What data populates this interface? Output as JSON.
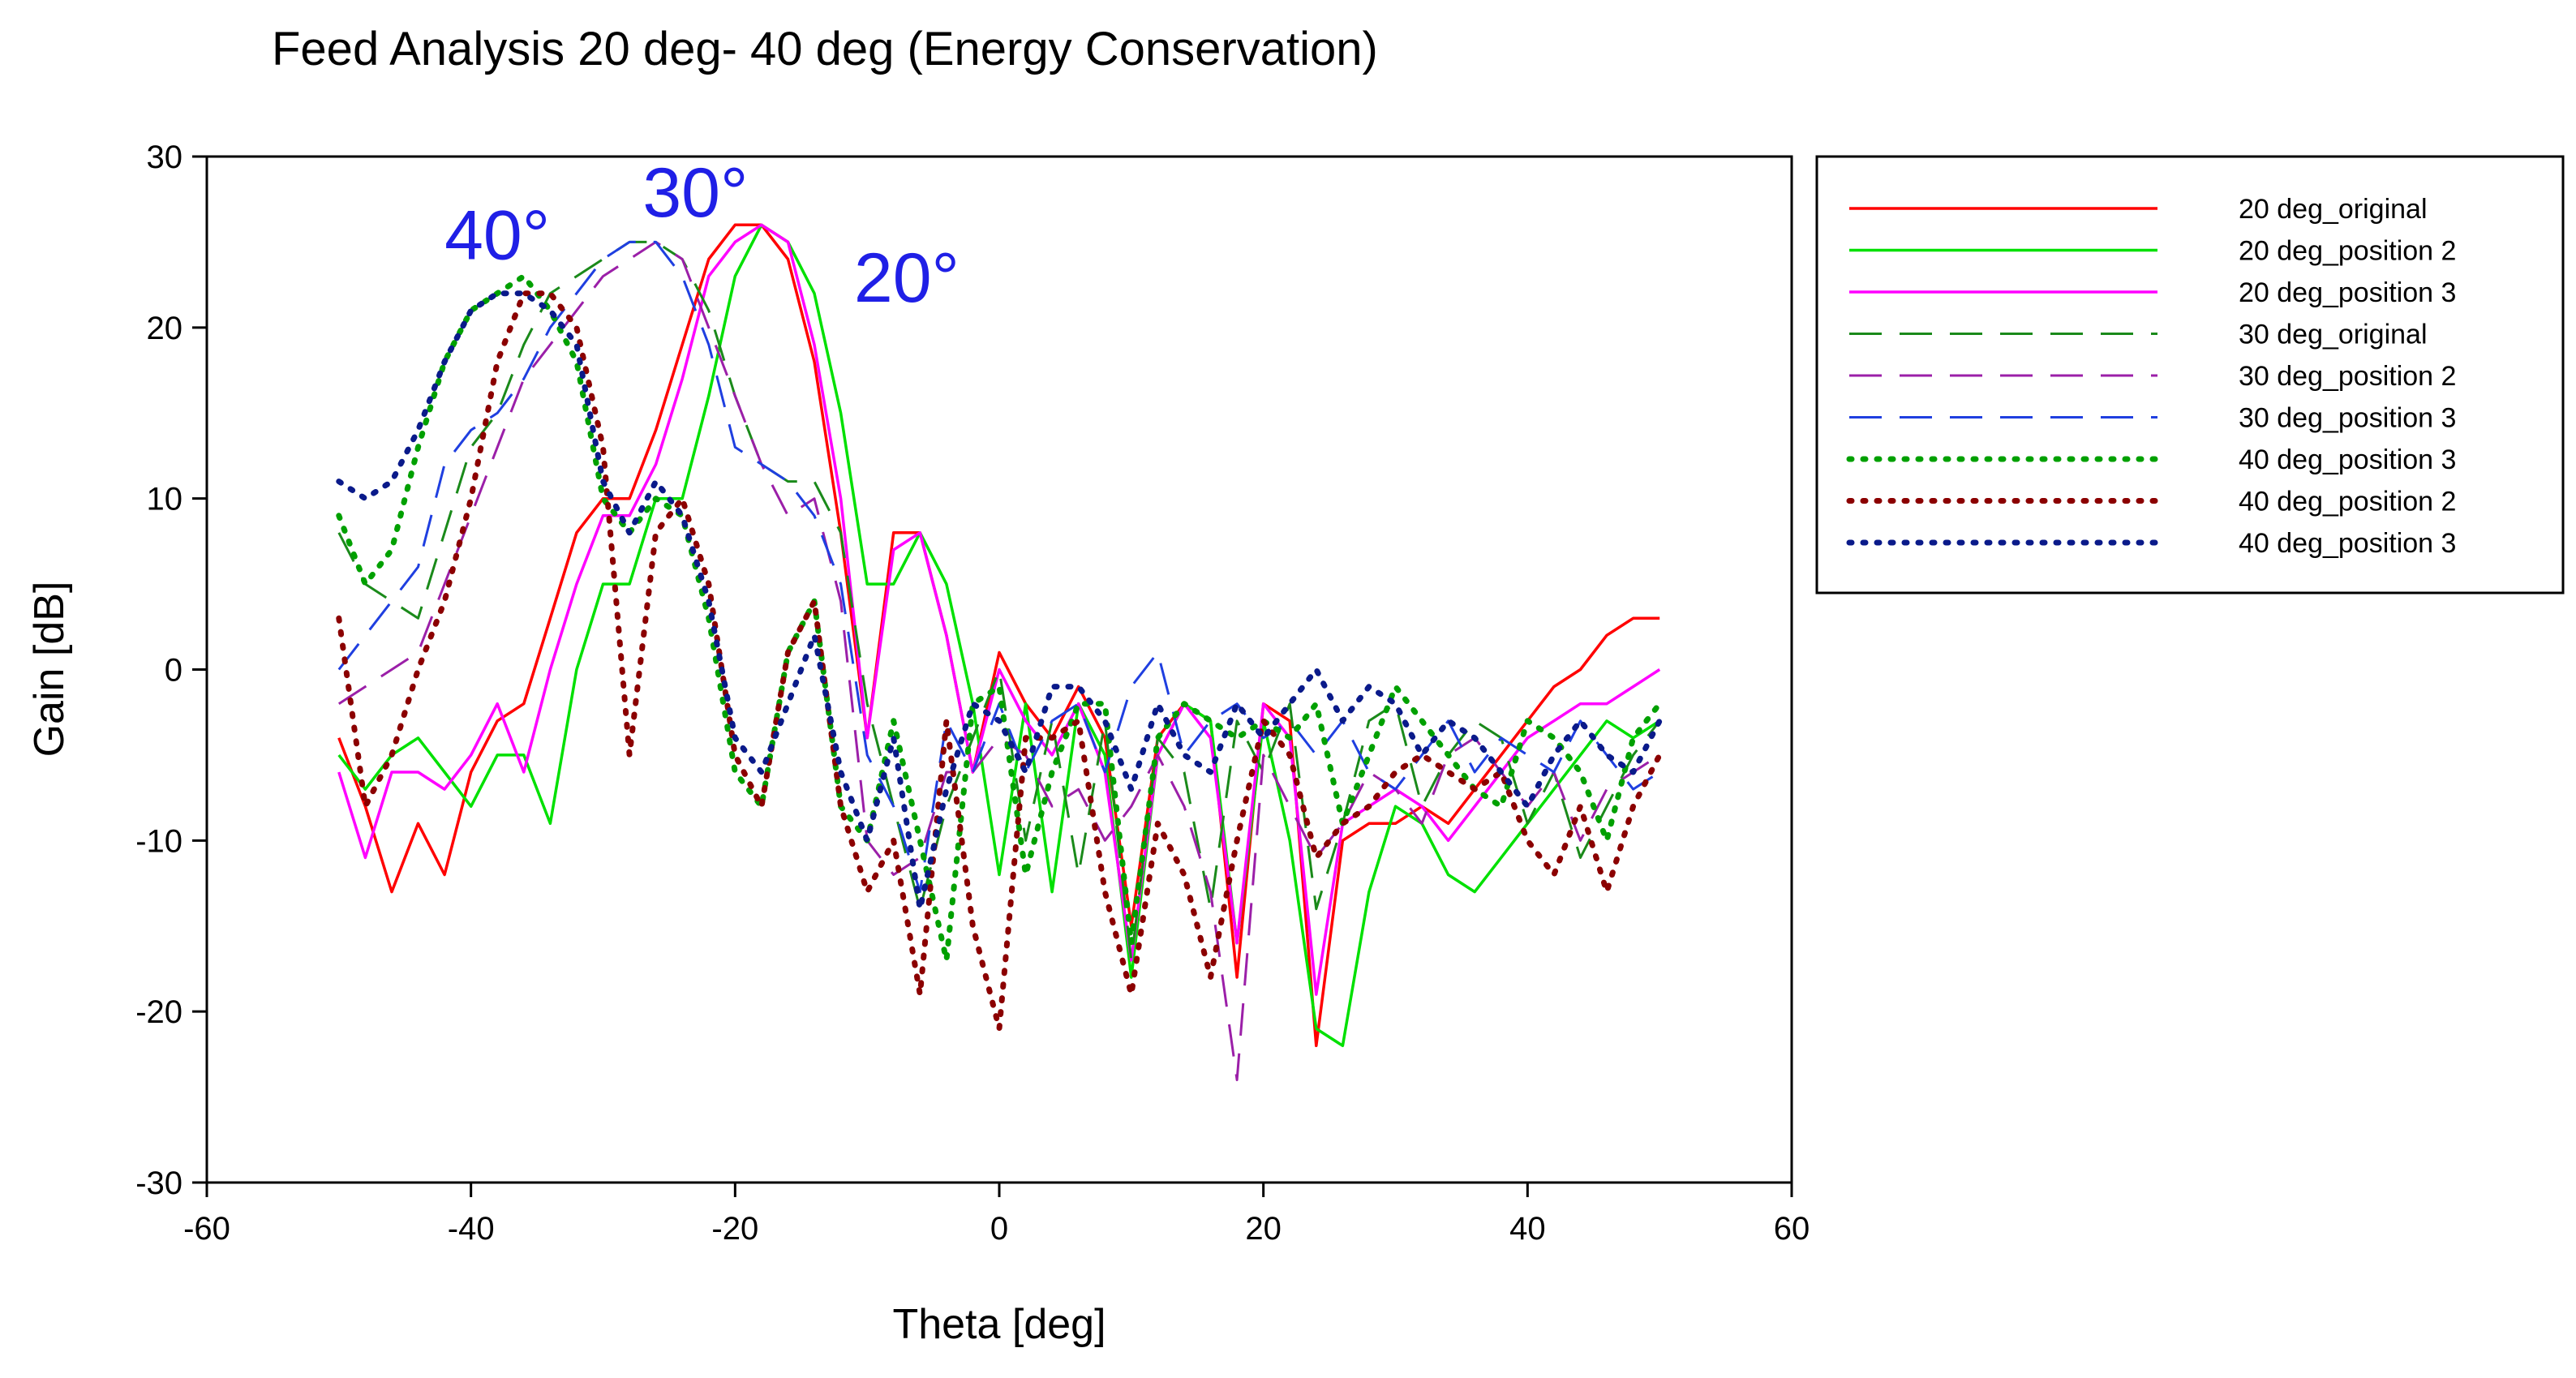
{
  "chart_data": {
    "type": "line",
    "title": "Feed Analysis 20 deg- 40 deg (Energy Conservation)",
    "xlabel": "Theta [deg]",
    "ylabel": "Gain [dB]",
    "xlim": [
      -60,
      60
    ],
    "ylim": [
      -30,
      30
    ],
    "xticks": [
      -60,
      -40,
      -20,
      0,
      20,
      40,
      60
    ],
    "yticks": [
      -30,
      -20,
      -10,
      0,
      10,
      20,
      30
    ],
    "grid": false,
    "legend_position": "right-top",
    "annotations": [
      {
        "text": "40°",
        "x": -42,
        "y": 24
      },
      {
        "text": "30°",
        "x": -27,
        "y": 26.5
      },
      {
        "text": "20°",
        "x": -11,
        "y": 21.5
      }
    ],
    "series": [
      {
        "name": "20 deg_original",
        "color": "#ff0000",
        "style": "solid",
        "x": [
          -50,
          -48,
          -46,
          -44,
          -42,
          -40,
          -38,
          -36,
          -34,
          -32,
          -30,
          -28,
          -26,
          -24,
          -22,
          -20,
          -18,
          -16,
          -14,
          -12,
          -10,
          -8,
          -6,
          -4,
          -2,
          0,
          2,
          4,
          6,
          8,
          10,
          12,
          14,
          16,
          18,
          20,
          22,
          24,
          26,
          28,
          30,
          32,
          34,
          36,
          38,
          40,
          42,
          44,
          46,
          48,
          50
        ],
        "y": [
          -4,
          -8,
          -13,
          -9,
          -12,
          -6,
          -3,
          -2,
          3,
          8,
          10,
          10,
          14,
          19,
          24,
          26,
          26,
          24,
          18,
          8,
          -4,
          8,
          8,
          2,
          -6,
          1,
          -2,
          -4,
          -1,
          -4,
          -15,
          -4,
          -2,
          -3,
          -18,
          -2,
          -3,
          -22,
          -10,
          -9,
          -9,
          -8,
          -9,
          -7,
          -5,
          -3,
          -1,
          0,
          2,
          3,
          3
        ]
      },
      {
        "name": "20 deg_position 2",
        "color": "#00e000",
        "style": "solid",
        "x": [
          -50,
          -48,
          -46,
          -44,
          -42,
          -40,
          -38,
          -36,
          -34,
          -32,
          -30,
          -28,
          -26,
          -24,
          -22,
          -20,
          -18,
          -16,
          -14,
          -12,
          -10,
          -8,
          -6,
          -4,
          -2,
          0,
          2,
          4,
          6,
          8,
          10,
          12,
          14,
          16,
          18,
          20,
          22,
          24,
          26,
          28,
          30,
          32,
          34,
          36,
          38,
          40,
          42,
          44,
          46,
          48,
          50
        ],
        "y": [
          -5,
          -7,
          -5,
          -4,
          -6,
          -8,
          -5,
          -5,
          -9,
          0,
          5,
          5,
          10,
          10,
          16,
          23,
          26,
          25,
          22,
          15,
          5,
          5,
          8,
          5,
          -2,
          -12,
          -2,
          -13,
          -2,
          -5,
          -18,
          -5,
          -2,
          -3,
          -16,
          -3,
          -10,
          -21,
          -22,
          -13,
          -8,
          -9,
          -12,
          -13,
          -11,
          -9,
          -7,
          -5,
          -3,
          -4,
          -3
        ]
      },
      {
        "name": "20 deg_position 3",
        "color": "#ff00ff",
        "style": "solid",
        "x": [
          -50,
          -48,
          -46,
          -44,
          -42,
          -40,
          -38,
          -36,
          -34,
          -32,
          -30,
          -28,
          -26,
          -24,
          -22,
          -20,
          -18,
          -16,
          -14,
          -12,
          -10,
          -8,
          -6,
          -4,
          -2,
          0,
          2,
          4,
          6,
          8,
          10,
          12,
          14,
          16,
          18,
          20,
          22,
          24,
          26,
          28,
          30,
          32,
          34,
          36,
          38,
          40,
          42,
          44,
          46,
          48,
          50
        ],
        "y": [
          -6,
          -11,
          -6,
          -6,
          -7,
          -5,
          -2,
          -6,
          0,
          5,
          9,
          9,
          12,
          17,
          23,
          25,
          26,
          25,
          19,
          10,
          -4,
          7,
          8,
          2,
          -6,
          0,
          -3,
          -5,
          -2,
          -6,
          -17,
          -5,
          -2,
          -4,
          -16,
          -2,
          -4,
          -19,
          -9,
          -8,
          -7,
          -8,
          -10,
          -8,
          -6,
          -4,
          -3,
          -2,
          -2,
          -1,
          0
        ]
      },
      {
        "name": "30 deg_original",
        "color": "#1a8a1a",
        "style": "dashed",
        "x": [
          -50,
          -48,
          -46,
          -44,
          -42,
          -40,
          -38,
          -36,
          -34,
          -32,
          -30,
          -28,
          -26,
          -24,
          -22,
          -20,
          -18,
          -16,
          -14,
          -12,
          -10,
          -8,
          -6,
          -4,
          -2,
          0,
          2,
          4,
          6,
          8,
          10,
          12,
          14,
          16,
          18,
          20,
          22,
          24,
          26,
          28,
          30,
          32,
          34,
          36,
          38,
          40,
          42,
          44,
          46,
          48,
          50
        ],
        "y": [
          8,
          5,
          4,
          3,
          8,
          13,
          15,
          19,
          22,
          23,
          24,
          25,
          25,
          24,
          21,
          16,
          12,
          11,
          11,
          8,
          -2,
          -8,
          -14,
          -8,
          -4,
          0,
          -10,
          -3,
          -12,
          -3,
          -17,
          -4,
          -6,
          -14,
          -3,
          -6,
          -2,
          -14,
          -9,
          -3,
          -2,
          -8,
          -5,
          -3,
          -4,
          -9,
          -6,
          -11,
          -8,
          -5,
          -3
        ]
      },
      {
        "name": "30 deg_position 2",
        "color": "#9b1fa8",
        "style": "dashed",
        "x": [
          -50,
          -48,
          -46,
          -44,
          -42,
          -40,
          -38,
          -36,
          -34,
          -32,
          -30,
          -28,
          -26,
          -24,
          -22,
          -20,
          -18,
          -16,
          -14,
          -12,
          -10,
          -8,
          -6,
          -4,
          -2,
          0,
          2,
          4,
          6,
          8,
          10,
          12,
          14,
          16,
          18,
          20,
          22,
          24,
          26,
          28,
          30,
          32,
          34,
          36,
          38,
          40,
          42,
          44,
          46,
          48,
          50
        ],
        "y": [
          -2,
          -1,
          0,
          1,
          5,
          9,
          13,
          17,
          19,
          21,
          23,
          24,
          25,
          24,
          20,
          16,
          12,
          9,
          10,
          4,
          -10,
          -12,
          -11,
          -6,
          -6,
          -4,
          -5,
          -8,
          -7,
          -10,
          -8,
          -5,
          -8,
          -13,
          -24,
          -5,
          -8,
          -11,
          -9,
          -6,
          -7,
          -9,
          -5,
          -4,
          -6,
          -8,
          -6,
          -10,
          -7,
          -6,
          -5
        ]
      },
      {
        "name": "30 deg_position 3",
        "color": "#1f3fe0",
        "style": "dashed",
        "x": [
          -50,
          -48,
          -46,
          -44,
          -42,
          -40,
          -38,
          -36,
          -34,
          -32,
          -30,
          -28,
          -26,
          -24,
          -22,
          -20,
          -18,
          -16,
          -14,
          -12,
          -10,
          -8,
          -6,
          -4,
          -2,
          0,
          2,
          4,
          6,
          8,
          10,
          12,
          14,
          16,
          18,
          20,
          22,
          24,
          26,
          28,
          30,
          32,
          34,
          36,
          38,
          40,
          42,
          44,
          46,
          48,
          50
        ],
        "y": [
          0,
          2,
          4,
          6,
          12,
          14,
          15,
          17,
          20,
          22,
          24,
          25,
          25,
          23,
          19,
          13,
          12,
          11,
          9,
          5,
          -5,
          -8,
          -13,
          -3,
          -6,
          -2,
          -6,
          -3,
          -2,
          -6,
          -1,
          1,
          -5,
          -3,
          -2,
          -4,
          -3,
          -5,
          -3,
          -6,
          -7,
          -5,
          -3,
          -6,
          -4,
          -5,
          -6,
          -3,
          -5,
          -7,
          -6
        ]
      },
      {
        "name": "40 deg_position 3",
        "color": "#00a000",
        "style": "dotted",
        "x": [
          -50,
          -48,
          -46,
          -44,
          -42,
          -40,
          -38,
          -36,
          -34,
          -32,
          -30,
          -28,
          -26,
          -24,
          -22,
          -20,
          -18,
          -16,
          -14,
          -12,
          -10,
          -8,
          -6,
          -4,
          -2,
          0,
          2,
          4,
          6,
          8,
          10,
          12,
          14,
          16,
          18,
          20,
          22,
          24,
          26,
          28,
          30,
          32,
          34,
          36,
          38,
          40,
          42,
          44,
          46,
          48,
          50
        ],
        "y": [
          9,
          5,
          7,
          13,
          18,
          21,
          22,
          23,
          21,
          18,
          10,
          8,
          10,
          9,
          3,
          -6,
          -8,
          1,
          4,
          -8,
          -10,
          -3,
          -10,
          -17,
          -2,
          -1,
          -12,
          -6,
          -2,
          -2,
          -16,
          -4,
          -2,
          -3,
          -4,
          -3,
          -4,
          -2,
          -9,
          -5,
          -1,
          -3,
          -5,
          -7,
          -8,
          -3,
          -4,
          -6,
          -10,
          -4,
          -2
        ]
      },
      {
        "name": "40 deg_position 2",
        "color": "#8b0000",
        "style": "dotted",
        "x": [
          -50,
          -48,
          -46,
          -44,
          -42,
          -40,
          -38,
          -36,
          -34,
          -32,
          -30,
          -28,
          -26,
          -24,
          -22,
          -20,
          -18,
          -16,
          -14,
          -12,
          -10,
          -8,
          -6,
          -4,
          -2,
          0,
          2,
          4,
          6,
          8,
          10,
          12,
          14,
          16,
          18,
          20,
          22,
          24,
          26,
          28,
          30,
          32,
          34,
          36,
          38,
          40,
          42,
          44,
          46,
          48,
          50
        ],
        "y": [
          3,
          -8,
          -5,
          0,
          4,
          10,
          18,
          22,
          22,
          20,
          13,
          -5,
          8,
          10,
          5,
          -5,
          -8,
          1,
          4,
          -8,
          -13,
          -10,
          -19,
          -3,
          -15,
          -21,
          -4,
          -4,
          -3,
          -13,
          -19,
          -9,
          -12,
          -18,
          -10,
          -3,
          -5,
          -11,
          -9,
          -8,
          -6,
          -5,
          -6,
          -7,
          -6,
          -10,
          -12,
          -8,
          -13,
          -8,
          -5
        ]
      },
      {
        "name": "40 deg_position 3",
        "color": "#0a1a8a",
        "style": "dotted",
        "x": [
          -50,
          -48,
          -46,
          -44,
          -42,
          -40,
          -38,
          -36,
          -34,
          -32,
          -30,
          -28,
          -26,
          -24,
          -22,
          -20,
          -18,
          -16,
          -14,
          -12,
          -10,
          -8,
          -6,
          -4,
          -2,
          0,
          2,
          4,
          6,
          8,
          10,
          12,
          14,
          16,
          18,
          20,
          22,
          24,
          26,
          28,
          30,
          32,
          34,
          36,
          38,
          40,
          42,
          44,
          46,
          48,
          50
        ],
        "y": [
          11,
          10,
          11,
          14,
          18,
          21,
          22,
          22,
          21,
          19,
          11,
          8,
          11,
          9,
          4,
          -4,
          -6,
          -2,
          2,
          -6,
          -10,
          -4,
          -14,
          -7,
          -2,
          -3,
          -6,
          -1,
          -1,
          -3,
          -7,
          -2,
          -5,
          -6,
          -2,
          -4,
          -2,
          0,
          -3,
          -1,
          -2,
          -5,
          -3,
          -4,
          -6,
          -8,
          -5,
          -3,
          -5,
          -6,
          -3
        ]
      }
    ]
  }
}
